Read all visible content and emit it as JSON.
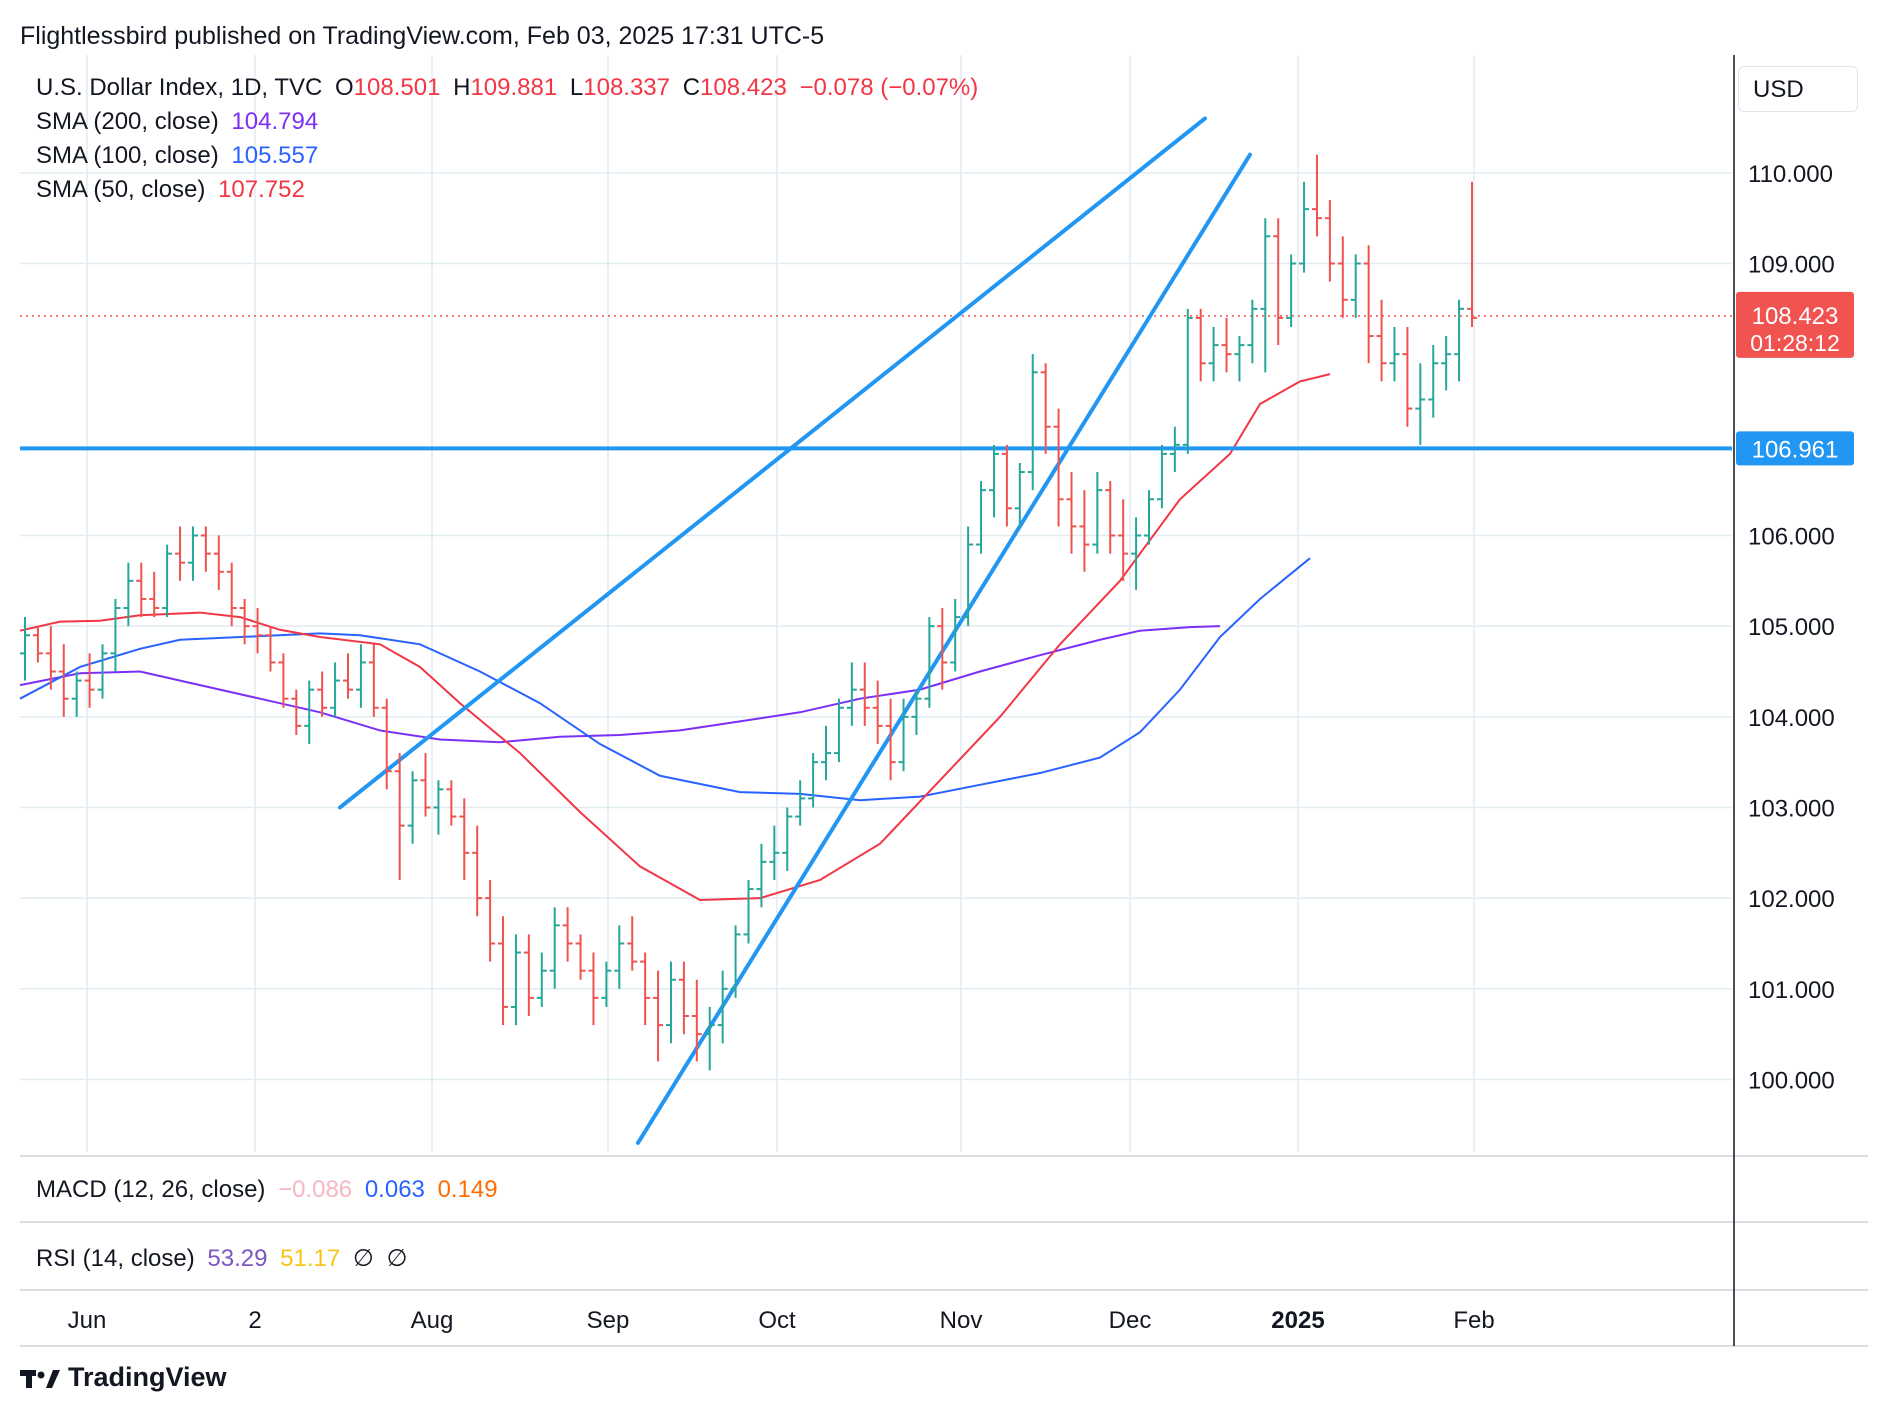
{
  "header": {
    "publisher_line": "Flightlessbird published on TradingView.com, Feb 03, 2025 17:31 UTC-5"
  },
  "legend": {
    "symbol": "U.S. Dollar Index, 1D, TVC",
    "ohlc": {
      "o_label": "O",
      "o": "108.501",
      "h_label": "H",
      "h": "109.881",
      "l_label": "L",
      "l": "108.337",
      "c_label": "C",
      "c": "108.423",
      "change": "−0.078 (−0.07%)"
    },
    "sma200": {
      "label": "SMA (200, close)",
      "value": "104.794"
    },
    "sma100": {
      "label": "SMA (100, close)",
      "value": "105.557"
    },
    "sma50": {
      "label": "SMA (50, close)",
      "value": "107.752"
    }
  },
  "currency": "USD",
  "price_badge": {
    "price": "108.423",
    "countdown": "01:28:12"
  },
  "level_badge": "106.961",
  "macd": {
    "label": "MACD (12, 26, close)",
    "v1": "−0.086",
    "v2": "0.063",
    "v3": "0.149"
  },
  "rsi": {
    "label": "RSI (14, close)",
    "v1": "53.29",
    "v2": "51.17",
    "v3": "∅",
    "v4": "∅"
  },
  "footer": {
    "brand": "TradingView"
  },
  "colors": {
    "up": "#26a69a",
    "down": "#ef5350",
    "sma200": "#7b2ff7",
    "sma100": "#2962ff",
    "sma50": "#f23645",
    "trendline": "#2196f3",
    "grid": "#e1ecf2",
    "badge_red": "#f05350",
    "badge_blue": "#2196f3"
  },
  "chart_data": {
    "type": "ohlc",
    "title": "U.S. Dollar Index, 1D, TVC",
    "x_tick_labels": [
      "Jun",
      "2",
      "Aug",
      "Sep",
      "Oct",
      "Nov",
      "Dec",
      "2025",
      "Feb"
    ],
    "y_tick_labels": [
      "100.000",
      "101.000",
      "102.000",
      "103.000",
      "104.000",
      "105.000",
      "106.000",
      "109.000",
      "110.000"
    ],
    "ylim": [
      99.2,
      111.3
    ],
    "horizontal_level": 106.961,
    "last_price": 108.423,
    "sma200": [
      [
        0,
        104.35
      ],
      [
        60,
        104.48
      ],
      [
        120,
        104.5
      ],
      [
        180,
        104.35
      ],
      [
        240,
        104.2
      ],
      [
        300,
        104.05
      ],
      [
        360,
        103.85
      ],
      [
        420,
        103.75
      ],
      [
        480,
        103.72
      ],
      [
        540,
        103.78
      ],
      [
        600,
        103.8
      ],
      [
        660,
        103.85
      ],
      [
        720,
        103.95
      ],
      [
        780,
        104.05
      ],
      [
        840,
        104.2
      ],
      [
        900,
        104.3
      ],
      [
        960,
        104.5
      ],
      [
        1020,
        104.68
      ],
      [
        1080,
        104.85
      ],
      [
        1120,
        104.95
      ],
      [
        1170,
        104.99
      ],
      [
        1200,
        105.0
      ]
    ],
    "sma100": [
      [
        0,
        104.2
      ],
      [
        60,
        104.55
      ],
      [
        120,
        104.75
      ],
      [
        160,
        104.85
      ],
      [
        220,
        104.88
      ],
      [
        300,
        104.92
      ],
      [
        340,
        104.9
      ],
      [
        400,
        104.8
      ],
      [
        460,
        104.5
      ],
      [
        520,
        104.15
      ],
      [
        580,
        103.7
      ],
      [
        640,
        103.35
      ],
      [
        720,
        103.17
      ],
      [
        780,
        103.15
      ],
      [
        840,
        103.08
      ],
      [
        900,
        103.12
      ],
      [
        960,
        103.25
      ],
      [
        1020,
        103.38
      ],
      [
        1080,
        103.55
      ],
      [
        1120,
        103.83
      ],
      [
        1160,
        104.3
      ],
      [
        1200,
        104.88
      ],
      [
        1240,
        105.3
      ],
      [
        1290,
        105.75
      ]
    ],
    "sma50": [
      [
        0,
        104.95
      ],
      [
        40,
        105.05
      ],
      [
        80,
        105.06
      ],
      [
        120,
        105.12
      ],
      [
        180,
        105.15
      ],
      [
        220,
        105.1
      ],
      [
        260,
        104.96
      ],
      [
        300,
        104.88
      ],
      [
        360,
        104.8
      ],
      [
        400,
        104.55
      ],
      [
        440,
        104.15
      ],
      [
        500,
        103.6
      ],
      [
        560,
        102.95
      ],
      [
        620,
        102.35
      ],
      [
        680,
        101.98
      ],
      [
        740,
        102.0
      ],
      [
        800,
        102.2
      ],
      [
        860,
        102.6
      ],
      [
        920,
        103.3
      ],
      [
        980,
        104.0
      ],
      [
        1040,
        104.8
      ],
      [
        1100,
        105.5
      ],
      [
        1160,
        106.4
      ],
      [
        1210,
        106.9
      ],
      [
        1240,
        107.45
      ],
      [
        1280,
        107.7
      ],
      [
        1310,
        107.78
      ]
    ],
    "trendlines": [
      [
        [
          320,
          103.0
        ],
        [
          1185,
          110.6
        ]
      ],
      [
        [
          618,
          99.3
        ],
        [
          1230,
          110.2
        ]
      ]
    ],
    "ohlc": [
      [
        1,
        104.7,
        105.1,
        104.4,
        104.9
      ],
      [
        2,
        104.9,
        105.0,
        104.6,
        104.7
      ],
      [
        3,
        104.7,
        105.0,
        104.3,
        104.5
      ],
      [
        4,
        104.5,
        104.8,
        104.0,
        104.2
      ],
      [
        5,
        104.2,
        104.5,
        104.0,
        104.4
      ],
      [
        6,
        104.4,
        104.7,
        104.1,
        104.3
      ],
      [
        7,
        104.3,
        104.8,
        104.2,
        104.7
      ],
      [
        8,
        104.7,
        105.3,
        104.5,
        105.2
      ],
      [
        9,
        105.2,
        105.7,
        105.0,
        105.5
      ],
      [
        10,
        105.5,
        105.7,
        105.1,
        105.3
      ],
      [
        11,
        105.3,
        105.6,
        105.1,
        105.2
      ],
      [
        12,
        105.2,
        105.9,
        105.1,
        105.8
      ],
      [
        13,
        105.8,
        106.1,
        105.5,
        105.7
      ],
      [
        14,
        105.7,
        106.1,
        105.5,
        106.0
      ],
      [
        15,
        106.0,
        106.1,
        105.6,
        105.8
      ],
      [
        16,
        105.8,
        106.0,
        105.4,
        105.6
      ],
      [
        17,
        105.6,
        105.7,
        105.0,
        105.2
      ],
      [
        18,
        105.2,
        105.3,
        104.8,
        105.0
      ],
      [
        19,
        105.0,
        105.2,
        104.7,
        104.9
      ],
      [
        20,
        104.9,
        105.0,
        104.5,
        104.6
      ],
      [
        21,
        104.6,
        104.7,
        104.1,
        104.2
      ],
      [
        22,
        104.2,
        104.3,
        103.8,
        103.9
      ],
      [
        23,
        103.9,
        104.4,
        103.7,
        104.3
      ],
      [
        24,
        104.3,
        104.5,
        104.0,
        104.1
      ],
      [
        25,
        104.1,
        104.6,
        104.0,
        104.4
      ],
      [
        26,
        104.4,
        104.7,
        104.2,
        104.3
      ],
      [
        27,
        104.3,
        104.8,
        104.1,
        104.6
      ],
      [
        28,
        104.6,
        104.8,
        104.0,
        104.1
      ],
      [
        29,
        104.1,
        104.2,
        103.2,
        103.4
      ],
      [
        30,
        103.4,
        103.6,
        102.2,
        102.8
      ],
      [
        31,
        102.8,
        103.4,
        102.6,
        103.3
      ],
      [
        32,
        103.3,
        103.6,
        102.9,
        103.0
      ],
      [
        33,
        103.0,
        103.3,
        102.7,
        103.2
      ],
      [
        34,
        103.2,
        103.3,
        102.8,
        102.9
      ],
      [
        35,
        102.9,
        103.1,
        102.2,
        102.5
      ],
      [
        36,
        102.5,
        102.8,
        101.8,
        102.0
      ],
      [
        37,
        102.0,
        102.2,
        101.3,
        101.5
      ],
      [
        38,
        101.5,
        101.8,
        100.6,
        100.8
      ],
      [
        39,
        100.8,
        101.6,
        100.6,
        101.4
      ],
      [
        40,
        101.4,
        101.6,
        100.7,
        100.9
      ],
      [
        41,
        100.9,
        101.4,
        100.8,
        101.2
      ],
      [
        42,
        101.2,
        101.9,
        101.0,
        101.7
      ],
      [
        43,
        101.7,
        101.9,
        101.3,
        101.5
      ],
      [
        44,
        101.5,
        101.6,
        101.1,
        101.2
      ],
      [
        45,
        101.2,
        101.4,
        100.6,
        100.9
      ],
      [
        46,
        100.9,
        101.3,
        100.8,
        101.2
      ],
      [
        47,
        101.2,
        101.7,
        101.0,
        101.5
      ],
      [
        48,
        101.5,
        101.8,
        101.2,
        101.3
      ],
      [
        49,
        101.3,
        101.4,
        100.6,
        100.9
      ],
      [
        50,
        100.9,
        101.2,
        100.2,
        100.6
      ],
      [
        51,
        100.6,
        101.3,
        100.4,
        101.1
      ],
      [
        52,
        101.1,
        101.3,
        100.5,
        100.7
      ],
      [
        53,
        100.7,
        101.1,
        100.2,
        100.5
      ],
      [
        54,
        100.5,
        100.8,
        100.1,
        100.6
      ],
      [
        55,
        100.6,
        101.2,
        100.4,
        101.0
      ],
      [
        56,
        101.0,
        101.7,
        100.9,
        101.6
      ],
      [
        57,
        101.6,
        102.2,
        101.5,
        102.1
      ],
      [
        58,
        102.1,
        102.6,
        101.9,
        102.4
      ],
      [
        59,
        102.4,
        102.8,
        102.2,
        102.5
      ],
      [
        60,
        102.5,
        103.0,
        102.3,
        102.9
      ],
      [
        61,
        102.9,
        103.3,
        102.8,
        103.1
      ],
      [
        62,
        103.1,
        103.6,
        103.0,
        103.5
      ],
      [
        63,
        103.5,
        103.9,
        103.3,
        103.6
      ],
      [
        64,
        103.6,
        104.2,
        103.5,
        104.1
      ],
      [
        65,
        104.1,
        104.6,
        103.9,
        104.3
      ],
      [
        66,
        104.3,
        104.6,
        103.9,
        104.1
      ],
      [
        67,
        104.1,
        104.4,
        103.7,
        103.9
      ],
      [
        68,
        103.9,
        104.2,
        103.3,
        103.5
      ],
      [
        69,
        103.5,
        104.2,
        103.4,
        104.0
      ],
      [
        70,
        104.0,
        104.3,
        103.8,
        104.2
      ],
      [
        71,
        104.2,
        105.1,
        104.1,
        105.0
      ],
      [
        72,
        105.0,
        105.2,
        104.3,
        104.6
      ],
      [
        73,
        104.6,
        105.3,
        104.5,
        105.1
      ],
      [
        74,
        105.1,
        106.1,
        105.0,
        105.9
      ],
      [
        75,
        105.9,
        106.6,
        105.8,
        106.5
      ],
      [
        76,
        106.5,
        107.0,
        106.2,
        106.9
      ],
      [
        77,
        106.9,
        107.0,
        106.1,
        106.3
      ],
      [
        78,
        106.3,
        106.8,
        106.1,
        106.7
      ],
      [
        79,
        106.7,
        108.0,
        106.5,
        107.8
      ],
      [
        80,
        107.8,
        107.9,
        106.9,
        107.2
      ],
      [
        81,
        107.2,
        107.4,
        106.1,
        106.4
      ],
      [
        82,
        106.4,
        106.7,
        105.8,
        106.1
      ],
      [
        83,
        106.1,
        106.5,
        105.6,
        105.9
      ],
      [
        84,
        105.9,
        106.7,
        105.8,
        106.5
      ],
      [
        85,
        106.5,
        106.6,
        105.8,
        106.0
      ],
      [
        86,
        106.0,
        106.4,
        105.5,
        105.8
      ],
      [
        87,
        105.8,
        106.2,
        105.4,
        106.0
      ],
      [
        88,
        106.0,
        106.5,
        105.9,
        106.4
      ],
      [
        89,
        106.4,
        107.0,
        106.3,
        106.9
      ],
      [
        90,
        106.9,
        107.2,
        106.7,
        107.0
      ],
      [
        91,
        107.0,
        108.5,
        106.9,
        108.4
      ],
      [
        92,
        108.4,
        108.5,
        107.7,
        107.9
      ],
      [
        93,
        107.9,
        108.3,
        107.7,
        108.1
      ],
      [
        94,
        108.1,
        108.4,
        107.8,
        108.0
      ],
      [
        95,
        108.0,
        108.2,
        107.7,
        108.1
      ],
      [
        96,
        108.1,
        108.6,
        107.9,
        108.5
      ],
      [
        97,
        108.5,
        109.5,
        107.8,
        109.3
      ],
      [
        98,
        109.3,
        109.5,
        108.1,
        108.4
      ],
      [
        99,
        108.4,
        109.1,
        108.3,
        109.0
      ],
      [
        100,
        109.0,
        109.9,
        108.9,
        109.6
      ],
      [
        101,
        109.6,
        110.2,
        109.3,
        109.5
      ],
      [
        102,
        109.5,
        109.7,
        108.8,
        109.0
      ],
      [
        103,
        109.0,
        109.3,
        108.4,
        108.6
      ],
      [
        104,
        108.6,
        109.1,
        108.4,
        109.0
      ],
      [
        105,
        109.0,
        109.2,
        107.9,
        108.2
      ],
      [
        106,
        108.2,
        108.6,
        107.7,
        107.9
      ],
      [
        107,
        107.9,
        108.3,
        107.7,
        108.0
      ],
      [
        108,
        108.0,
        108.3,
        107.2,
        107.4
      ],
      [
        109,
        107.4,
        107.9,
        107.0,
        107.5
      ],
      [
        110,
        107.5,
        108.1,
        107.3,
        107.9
      ],
      [
        111,
        107.9,
        108.2,
        107.6,
        108.0
      ],
      [
        112,
        108.0,
        108.6,
        107.7,
        108.5
      ],
      [
        113,
        108.5,
        109.9,
        108.3,
        108.4
      ]
    ],
    "bar_count": 113,
    "legend_position": "top-left"
  }
}
